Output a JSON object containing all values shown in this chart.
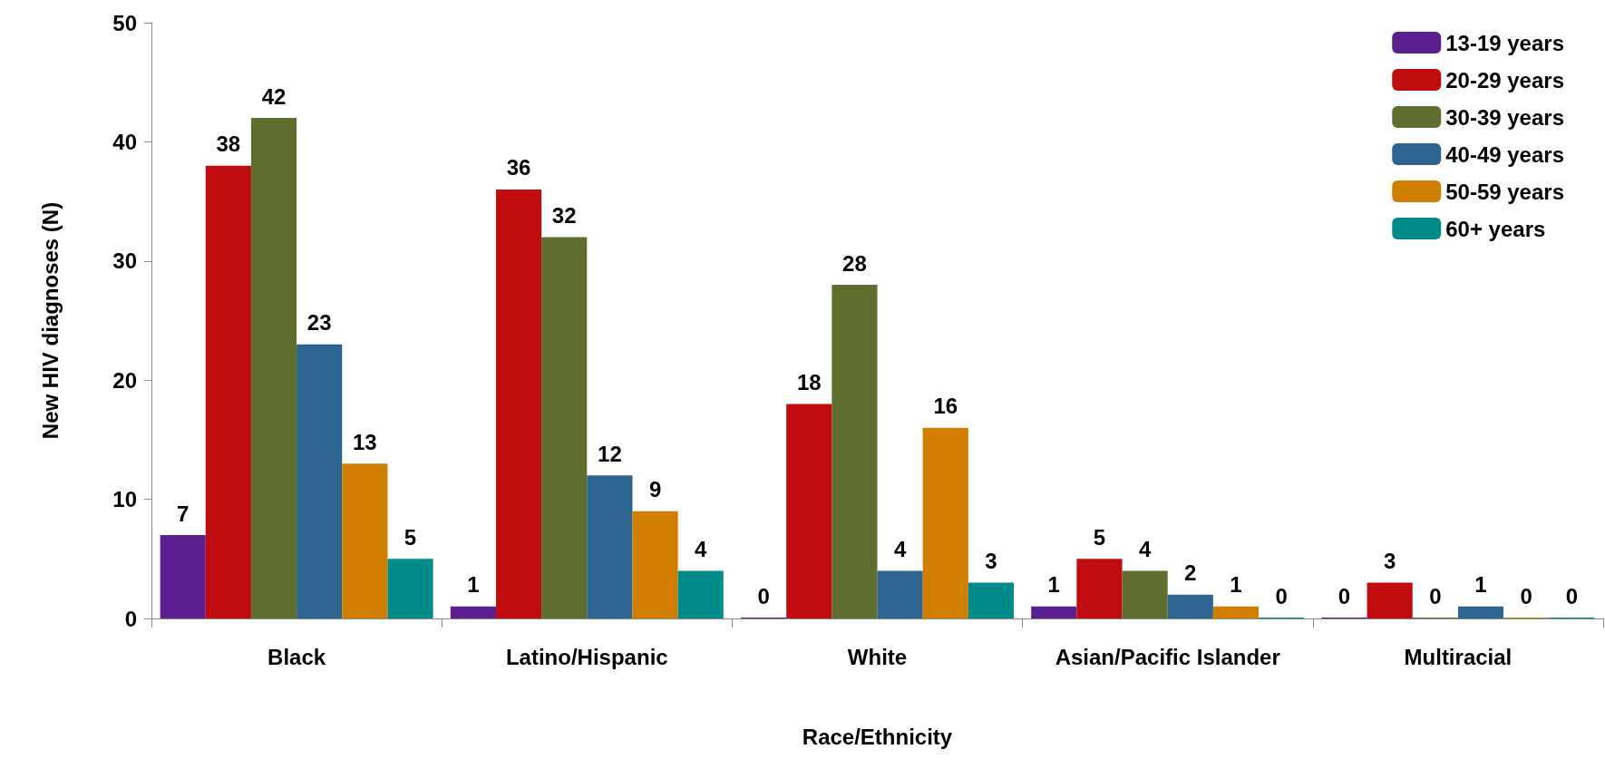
{
  "chart_data": {
    "type": "bar",
    "xlabel": "Race/Ethnicity",
    "ylabel": "New HIV diagnoses (N)",
    "categories": [
      "Black",
      "Latino/Hispanic",
      "White",
      "Asian/Pacific Islander",
      "Multiracial"
    ],
    "series": [
      {
        "name": "13-19 years",
        "color": "#5b1f8f",
        "values": [
          7,
          1,
          0,
          1,
          0
        ]
      },
      {
        "name": "20-29 years",
        "color": "#c00b0f",
        "values": [
          38,
          36,
          18,
          5,
          3
        ]
      },
      {
        "name": "30-39 years",
        "color": "#5f6d2f",
        "values": [
          42,
          32,
          28,
          4,
          0
        ]
      },
      {
        "name": "40-49 years",
        "color": "#2e6590",
        "values": [
          23,
          12,
          4,
          2,
          1
        ]
      },
      {
        "name": "50-59 years",
        "color": "#d07e00",
        "values": [
          13,
          9,
          16,
          1,
          0
        ]
      },
      {
        "name": "60+ years",
        "color": "#008b8b",
        "values": [
          5,
          4,
          3,
          0,
          0
        ]
      }
    ],
    "ylim": [
      0,
      50
    ],
    "yticks": [
      0,
      10,
      20,
      30,
      40,
      50
    ],
    "grid": false,
    "legend": "top right",
    "data_labels": true
  }
}
